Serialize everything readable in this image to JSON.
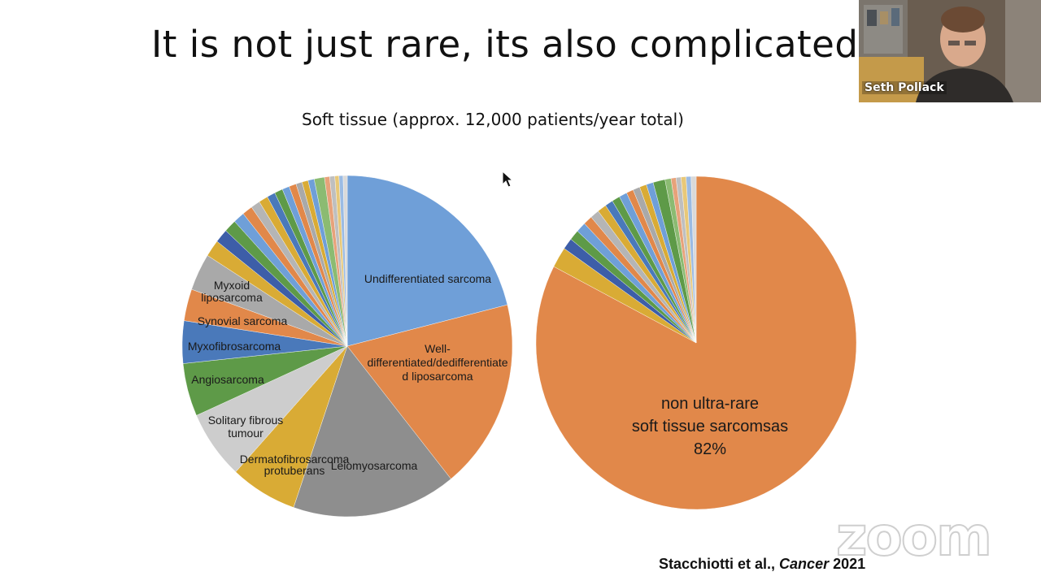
{
  "slide": {
    "title": "It is not just rare, its also complicated",
    "subtitle": "Soft tissue (approx. 12,000 patients/year total)",
    "citation_authors": "Stacchiotti et al., ",
    "citation_journal": "Cancer",
    "citation_year": " 2021"
  },
  "video_tile": {
    "speaker_name": "Seth Pollack"
  },
  "watermark": {
    "text": "zoom"
  },
  "colors": {
    "blue": "#6f9fd8",
    "orange": "#e1884a",
    "gray": "#8e8e8e",
    "gold": "#d9ab35",
    "lightgray": "#cdcdcd",
    "green": "#5e9a48",
    "steel": "#4a79ba"
  },
  "chart_data": [
    {
      "type": "pie",
      "title": "",
      "start_angle_deg": 0,
      "slices": [
        {
          "label": "Undifferentiated sarcoma",
          "value": 21,
          "color": "#6f9fd8"
        },
        {
          "label": "Well-differentiated/dedifferentiated liposarcoma",
          "value": 18,
          "color": "#e1884a"
        },
        {
          "label": "Leiomyosarcoma",
          "value": 16,
          "color": "#8e8e8e"
        },
        {
          "label": "Dermatofibrosarcoma protuberans",
          "value": 6.5,
          "color": "#d9ab35"
        },
        {
          "label": "Solitary fibrous tumour",
          "value": 6.5,
          "color": "#cdcdcd"
        },
        {
          "label": "Angiosarcoma",
          "value": 5,
          "color": "#5e9a48"
        },
        {
          "label": "Myxofibrosarcoma",
          "value": 4,
          "color": "#4a79ba"
        },
        {
          "label": "Synovial sarcoma",
          "value": 3,
          "color": "#e1884a"
        },
        {
          "label": "Myxoid liposarcoma",
          "value": 3.5,
          "color": "#a9a9a9"
        },
        {
          "label": "",
          "value": 1.6,
          "color": "#d9ab35"
        },
        {
          "label": "",
          "value": 1.3,
          "color": "#3d5ea8"
        },
        {
          "label": "",
          "value": 1.2,
          "color": "#5e9a48"
        },
        {
          "label": "",
          "value": 1.1,
          "color": "#6f9fd8"
        },
        {
          "label": "",
          "value": 1,
          "color": "#e1884a"
        },
        {
          "label": "",
          "value": 0.9,
          "color": "#b5b5b5"
        },
        {
          "label": "",
          "value": 0.9,
          "color": "#d9ab35"
        },
        {
          "label": "",
          "value": 0.8,
          "color": "#4a79ba"
        },
        {
          "label": "",
          "value": 0.8,
          "color": "#5e9a48"
        },
        {
          "label": "",
          "value": 0.7,
          "color": "#6f9fd8"
        },
        {
          "label": "",
          "value": 0.7,
          "color": "#e1884a"
        },
        {
          "label": "",
          "value": 0.6,
          "color": "#a9a9a9"
        },
        {
          "label": "",
          "value": 0.6,
          "color": "#d9ab35"
        },
        {
          "label": "",
          "value": 0.6,
          "color": "#6f9fd8"
        },
        {
          "label": "",
          "value": 1,
          "color": "#8bbb72"
        },
        {
          "label": "",
          "value": 0.5,
          "color": "#e7a27a"
        },
        {
          "label": "",
          "value": 0.5,
          "color": "#bfbfbf"
        },
        {
          "label": "",
          "value": 0.4,
          "color": "#e8c878"
        },
        {
          "label": "",
          "value": 0.4,
          "color": "#9bbbe3"
        },
        {
          "label": "",
          "value": 0.4,
          "color": "#d9d9d9"
        }
      ]
    },
    {
      "type": "pie",
      "title": "",
      "start_angle_deg": 0,
      "slices": [
        {
          "label": "non ultra-rare soft tissue sarcomsas 82%",
          "value": 82,
          "color": "#e1884a"
        },
        {
          "label": "",
          "value": 2,
          "color": "#d9ab35"
        },
        {
          "label": "",
          "value": 1.1,
          "color": "#3d5ea8"
        },
        {
          "label": "",
          "value": 1,
          "color": "#5e9a48"
        },
        {
          "label": "",
          "value": 1,
          "color": "#6f9fd8"
        },
        {
          "label": "",
          "value": 0.9,
          "color": "#e1884a"
        },
        {
          "label": "",
          "value": 0.9,
          "color": "#b5b5b5"
        },
        {
          "label": "",
          "value": 0.9,
          "color": "#d9ab35"
        },
        {
          "label": "",
          "value": 0.8,
          "color": "#4a79ba"
        },
        {
          "label": "",
          "value": 0.8,
          "color": "#5e9a48"
        },
        {
          "label": "",
          "value": 0.8,
          "color": "#6f9fd8"
        },
        {
          "label": "",
          "value": 0.7,
          "color": "#e1884a"
        },
        {
          "label": "",
          "value": 0.7,
          "color": "#a9a9a9"
        },
        {
          "label": "",
          "value": 0.7,
          "color": "#d9ab35"
        },
        {
          "label": "",
          "value": 0.7,
          "color": "#6f9fd8"
        },
        {
          "label": "",
          "value": 1.2,
          "color": "#5e9a48"
        },
        {
          "label": "",
          "value": 0.6,
          "color": "#8bbb72"
        },
        {
          "label": "",
          "value": 0.5,
          "color": "#e7a27a"
        },
        {
          "label": "",
          "value": 0.5,
          "color": "#bfbfbf"
        },
        {
          "label": "",
          "value": 0.5,
          "color": "#e8c878"
        },
        {
          "label": "",
          "value": 0.5,
          "color": "#9bbbe3"
        },
        {
          "label": "",
          "value": 0.5,
          "color": "#d9d9d9"
        }
      ]
    }
  ]
}
